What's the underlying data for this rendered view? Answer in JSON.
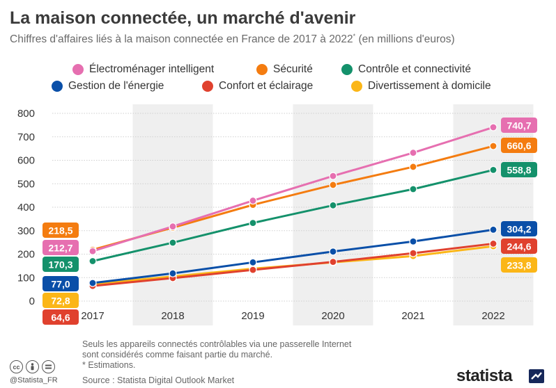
{
  "header": {
    "title": "La maison connectée, un marché d'avenir",
    "subtitle": "Chiffres d'affaires liés à la maison connectée en France de 2017 à 2022",
    "subtitle_mark": "*",
    "subtitle_unit": " (en millions d'euros)"
  },
  "legend": [
    {
      "label": "Électroménager intelligent",
      "color": "#e66fb0"
    },
    {
      "label": "Sécurité",
      "color": "#f47c10"
    },
    {
      "label": "Contrôle et connectivité",
      "color": "#14916b"
    },
    {
      "label": "Gestion de l'énergie",
      "color": "#0a4fa8"
    },
    {
      "label": "Confort et éclairage",
      "color": "#e0412e"
    },
    {
      "label": "Divertissement à domicile",
      "color": "#fbb617"
    }
  ],
  "chart_data": {
    "type": "line",
    "title": "La maison connectée, un marché d'avenir",
    "x": [
      "2017",
      "2018",
      "2019",
      "2020",
      "2021",
      "2022"
    ],
    "ylim": [
      0,
      800
    ],
    "yticks": [
      "0",
      "100",
      "200",
      "300",
      "400",
      "500",
      "600",
      "700",
      "800"
    ],
    "grid": true,
    "legend_position": "top",
    "series": [
      {
        "name": "Électroménager intelligent",
        "color": "#e66fb0",
        "values": [
          212.7,
          318,
          428,
          533,
          632,
          740.7
        ],
        "start_label": "212,7",
        "end_label": "740,7"
      },
      {
        "name": "Sécurité",
        "color": "#f47c10",
        "values": [
          218.5,
          313,
          410,
          495,
          572,
          660.6
        ],
        "start_label": "218,5",
        "end_label": "660,6"
      },
      {
        "name": "Contrôle et connectivité",
        "color": "#14916b",
        "values": [
          170.3,
          249,
          333,
          408,
          477,
          558.8
        ],
        "start_label": "170,3",
        "end_label": "558,8"
      },
      {
        "name": "Gestion de l'énergie",
        "color": "#0a4fa8",
        "values": [
          77.0,
          118,
          165,
          211,
          254,
          304.2
        ],
        "start_label": "77,0",
        "end_label": "304,2"
      },
      {
        "name": "Confort et éclairage",
        "color": "#e0412e",
        "values": [
          64.6,
          98,
          133,
          167,
          204,
          244.6
        ],
        "start_label": "64,6",
        "end_label": "244,6"
      },
      {
        "name": "Divertissement à domicile",
        "color": "#fbb617",
        "values": [
          72.8,
          105,
          138,
          165,
          192,
          233.8
        ],
        "start_label": "72,8",
        "end_label": "233,8"
      }
    ]
  },
  "footer": {
    "note_line1": "Seuls les appareils connectés contrôlables via une passerelle Internet",
    "note_line2": "sont considérés comme faisant partie du marché.",
    "note_line3": "* Estimations.",
    "source": "Source : Statista Digital Outlook Market",
    "handle": "@Statista_FR",
    "brand": "statista",
    "cc_icons": [
      "cc-icon",
      "by-icon",
      "nd-icon"
    ]
  }
}
